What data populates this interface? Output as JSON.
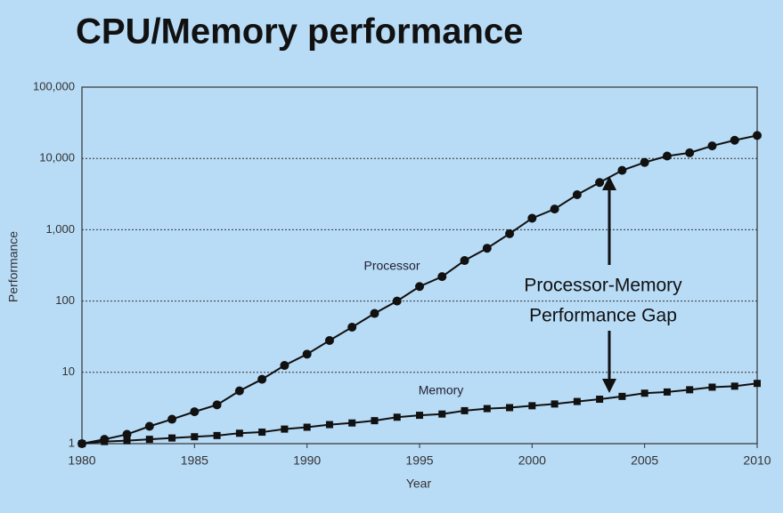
{
  "chart_data": {
    "type": "line",
    "title": "CPU/Memory performance",
    "x_label": "Year",
    "y_label": "Performance",
    "log_y": true,
    "grid": true,
    "x": [
      1980,
      1981,
      1982,
      1983,
      1984,
      1985,
      1986,
      1987,
      1988,
      1989,
      1990,
      1991,
      1992,
      1993,
      1994,
      1995,
      1996,
      1997,
      1998,
      1999,
      2000,
      2001,
      2002,
      2003,
      2004,
      2005,
      2006,
      2007,
      2008,
      2009,
      2010
    ],
    "xlim": [
      1980,
      2010
    ],
    "xticks": [
      1980,
      1985,
      1990,
      1995,
      2000,
      2005,
      2010
    ],
    "ylim": [
      1,
      100000
    ],
    "yticks": [
      1,
      10,
      100,
      {
        "value": 1000,
        "label": "1,000"
      },
      {
        "value": 10000,
        "label": "10,000"
      },
      {
        "value": 100000,
        "label": "100,000"
      }
    ],
    "series": [
      {
        "name": "Processor",
        "color": "#111111",
        "marker": "circle",
        "values": [
          1,
          1.15,
          1.35,
          1.75,
          2.2,
          2.8,
          3.5,
          5.5,
          8,
          12.5,
          18,
          28,
          43,
          67,
          100,
          160,
          220,
          370,
          550,
          880,
          1450,
          1950,
          3100,
          4600,
          6800,
          8800,
          10800,
          12000,
          15000,
          18000,
          21000
        ]
      },
      {
        "name": "Memory",
        "color": "#111111",
        "marker": "square",
        "values": [
          1,
          1.07,
          1.1,
          1.15,
          1.2,
          1.25,
          1.3,
          1.4,
          1.45,
          1.6,
          1.7,
          1.85,
          1.95,
          2.1,
          2.35,
          2.5,
          2.6,
          2.9,
          3.1,
          3.2,
          3.4,
          3.6,
          3.9,
          4.2,
          4.6,
          5.1,
          5.3,
          5.7,
          6.2,
          6.4,
          7
        ]
      }
    ],
    "annotations": [
      "Processor-Memory",
      "Performance Gap"
    ]
  }
}
